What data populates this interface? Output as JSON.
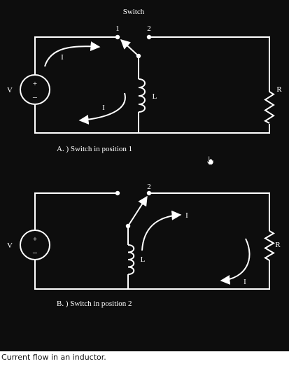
{
  "diagram": {
    "title": "Switch",
    "panel_a": {
      "caption": "A. )  Switch in position 1",
      "position_1_label": "1",
      "position_2_label": "2",
      "source_label": "V",
      "inductor_label": "L",
      "resistor_label": "R",
      "current_label_top": "I",
      "current_label_bottom": "I",
      "plus_sign": "+",
      "minus_sign": "−"
    },
    "panel_b": {
      "caption": "B. )  Switch in  position 2",
      "position_2_label": "2",
      "source_label": "V",
      "inductor_label": "L",
      "resistor_label": "R",
      "current_label_top": "I",
      "current_label_right": "I",
      "plus_sign": "+",
      "minus_sign": "−"
    },
    "colors": {
      "background": "#0d0d0d",
      "ink": "#ffffff"
    }
  },
  "caption": "Current flow in an inductor.",
  "cursor": "hand-cursor-icon"
}
